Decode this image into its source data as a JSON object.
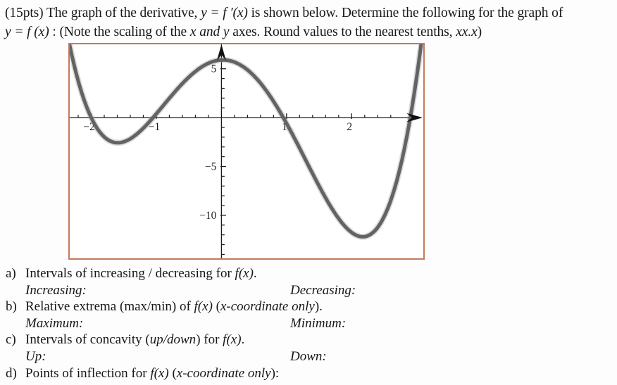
{
  "header": {
    "lines": [
      {
        "runs": [
          {
            "t": "(15pts) The graph of the derivative,  ",
            "i": false
          },
          {
            "t": "y = f ′(x)",
            "i": true
          },
          {
            "t": " is shown below. Determine the following for the graph of",
            "i": false
          }
        ]
      },
      {
        "runs": [
          {
            "t": "y = f (x)",
            "i": true
          },
          {
            "t": " : (Note the scaling of the ",
            "i": false
          },
          {
            "t": "x and y",
            "i": true
          },
          {
            "t": " axes. Round values to the nearest tenths, ",
            "i": false
          },
          {
            "t": "xx.x",
            "i": true
          },
          {
            "t": ")",
            "i": false
          }
        ]
      }
    ]
  },
  "chart_data": {
    "type": "line",
    "title": "",
    "xlabel": "",
    "ylabel": "",
    "xlim": [
      -2.33,
      3.1
    ],
    "ylim": [
      -14.4,
      7.5
    ],
    "x_tick_labels": [
      {
        "v": -2,
        "label": "−2"
      },
      {
        "v": -1,
        "label": "−1"
      },
      {
        "v": 1,
        "label": "1"
      },
      {
        "v": 2,
        "label": "2"
      }
    ],
    "x_minor_step": 0.2,
    "x_minor_range": [
      -2.2,
      2.6
    ],
    "y_tick_labels": [
      {
        "v": 5,
        "label": "5"
      },
      {
        "v": -5,
        "label": "−5"
      },
      {
        "v": -10,
        "label": "−10"
      }
    ],
    "y_minor_step": 1,
    "y_minor_range": [
      -14,
      6
    ],
    "grid": false,
    "legend": false,
    "frame_color": "#c4795b",
    "curve_color": "#636363",
    "axis_color": "#1a1a1a",
    "series": [
      {
        "name": "y = f'(x)",
        "model": "quartic: y = k(x-r1)(x-r2)(x-r3)(x-r4)",
        "roots": [
          -2.0,
          -1.05,
          0.95,
          2.9
        ],
        "leading_coefficient": 1.02,
        "x_intercepts": [
          -2.0,
          -1.05,
          0.95,
          2.9
        ],
        "local_minima": [
          [
            -1.55,
            -2.6
          ],
          [
            2.15,
            -12.3
          ]
        ],
        "local_maximum": [
          0.05,
          5.8
        ]
      }
    ]
  },
  "questions": {
    "items": [
      {
        "label": "a)",
        "runs": [
          {
            "t": "Intervals of increasing / decreasing for ",
            "i": false
          },
          {
            "t": "f(x)",
            "i": true
          },
          {
            "t": ".",
            "i": false
          }
        ],
        "sub_left": [
          {
            "t": "Increasing:",
            "i": true
          }
        ],
        "sub_right": [
          {
            "t": "Decreasing:",
            "i": true
          }
        ]
      },
      {
        "label": "b)",
        "runs": [
          {
            "t": "Relative extrema (max/min) of ",
            "i": false
          },
          {
            "t": "f(x)",
            "i": true
          },
          {
            "t": " (",
            "i": false
          },
          {
            "t": "x-coordinate only",
            "i": true
          },
          {
            "t": ").",
            "i": false
          }
        ],
        "sub_left": [
          {
            "t": "Maximum:",
            "i": true
          }
        ],
        "sub_right": [
          {
            "t": "Minimum:",
            "i": true
          }
        ]
      },
      {
        "label": "c)",
        "runs": [
          {
            "t": "Intervals of concavity (",
            "i": false
          },
          {
            "t": "up/down",
            "i": true
          },
          {
            "t": ") for ",
            "i": false
          },
          {
            "t": "f(x)",
            "i": true
          },
          {
            "t": ".",
            "i": false
          }
        ],
        "sub_left": [
          {
            "t": "Up:",
            "i": true
          }
        ],
        "sub_right": [
          {
            "t": "Down:",
            "i": true
          }
        ]
      },
      {
        "label": "d)",
        "runs": [
          {
            "t": "Points of inflection for ",
            "i": false
          },
          {
            "t": "f(x)",
            "i": true
          },
          {
            "t": " (",
            "i": false
          },
          {
            "t": "x-coordinate only",
            "i": true
          },
          {
            "t": "):",
            "i": false
          }
        ]
      }
    ]
  }
}
